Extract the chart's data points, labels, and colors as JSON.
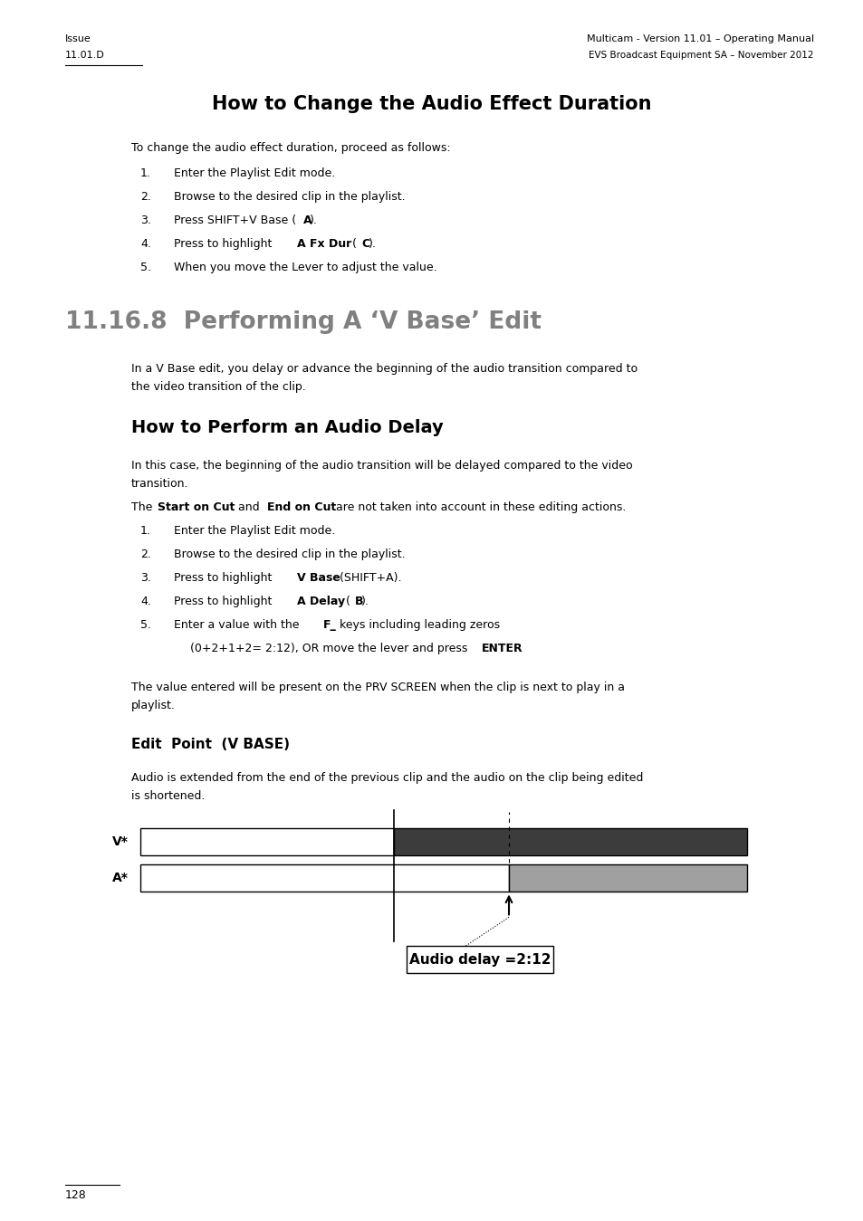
{
  "bg_color": "#ffffff",
  "page_width": 9.54,
  "page_height": 13.49,
  "header_left_line1": "Issue",
  "header_left_line2": "11.01.D",
  "header_right_line1": "Multicam - Version 11.01 – Operating Manual",
  "header_right_line2": "EVS Broadcast Equipment SA – November 2012",
  "footer_text": "128",
  "section_title1": "How to Change the Audio Effect Duration",
  "section_body1": "To change the audio effect duration, proceed as follows:",
  "list1": [
    [
      "Enter the Playlist Edit mode.",
      []
    ],
    [
      "Browse to the desired clip in the playlist.",
      []
    ],
    [
      "Press SHIFT+V Base (A).",
      []
    ],
    [
      "Press to highlight A Fx Dur (C).",
      [
        [
          18,
          26,
          "bold"
        ],
        [
          28,
          31,
          "bold"
        ]
      ]
    ],
    [
      "When you move the Lever to adjust the value.",
      []
    ]
  ],
  "section_title2": "11.16.8  Performing A ‘V Base’ Edit",
  "section_body2a": "In a V Base edit, you delay or advance the beginning of the audio transition compared to",
  "section_body2b": "the video transition of the clip.",
  "section_title3": "How to Perform an Audio Delay",
  "section_body3a": "In this case, the beginning of the audio transition will be delayed compared to the video",
  "section_body3b": "transition.",
  "section_body3c_pre": "The ",
  "section_body3c_bold1": "Start on Cut",
  "section_body3c_mid": " and ",
  "section_body3c_bold2": "End on Cut",
  "section_body3c_post": " are not taken into account in these editing actions.",
  "list2": [
    [
      "Enter the Playlist Edit mode.",
      []
    ],
    [
      "Browse to the desired clip in the playlist.",
      []
    ],
    [
      "Press to highlight V Base (SHIFT+A).",
      [
        [
          18,
          24,
          "bold"
        ]
      ]
    ],
    [
      "Press to highlight A Delay (B).",
      [
        [
          18,
          25,
          "bold"
        ],
        [
          27,
          28,
          "bold"
        ]
      ]
    ],
    [
      "Enter a value with the F_ keys including leading zeros",
      [
        [
          22,
          24,
          "bold"
        ]
      ]
    ]
  ],
  "list2_sub": [
    "(0+2+1+2= 2:12), OR move the lever and press ENTER.",
    [
      [
        44,
        49,
        "bold"
      ]
    ]
  ],
  "section_body4": "The value entered will be present on the PRV SCREEN when the clip is next to play in a",
  "section_body4b": "playlist.",
  "section_title4": "Edit  Point  (V BASE)",
  "section_body5a": "Audio is extended from the end of the previous clip and the audio on the clip being edited",
  "section_body5b": "is shortened.",
  "v_dark_color": "#3c3c3c",
  "a_gray_color": "#a0a0a0",
  "annotation_text": "Audio delay =2:12"
}
